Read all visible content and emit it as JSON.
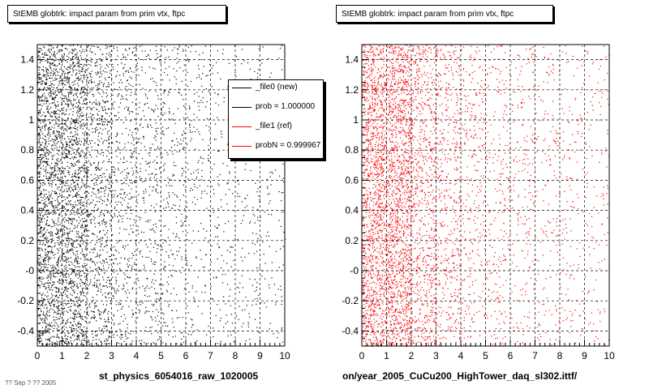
{
  "panels": [
    {
      "title": "StEMB globtrk: impact param from prim vtx, ftpc",
      "xlabel": "st_physics_6054016_raw_1020005",
      "marker_color": "#000000"
    },
    {
      "title": "StEMB globtrk: impact param from prim vtx, ftpc",
      "xlabel": "on/year_2005_CuCu200_HighTower_daq_sl302.ittf/",
      "marker_color": "#ff0000"
    }
  ],
  "legend": {
    "entries": [
      {
        "label": "_file0 (new)",
        "color": "#000000"
      },
      {
        "label": "prob = 1.000000",
        "color": "#000000"
      },
      {
        "label": "_file1 (ref)",
        "color": "#ff0000"
      },
      {
        "label": "probN = 0.999967",
        "color": "#ff0000"
      }
    ]
  },
  "footer": "?? Sep ? ?? 2005",
  "chart_data": [
    {
      "type": "scatter",
      "title": "StEMB globtrk: impact param from prim vtx, ftpc",
      "xlabel": "st_physics_6054016_raw_1020005",
      "ylabel": "",
      "xlim": [
        0,
        10
      ],
      "ylim": [
        -0.5,
        1.5
      ],
      "xticks": [
        "0",
        "1",
        "2",
        "3",
        "4",
        "5",
        "6",
        "7",
        "8",
        "9",
        "10"
      ],
      "yticks": [
        "-0.4",
        "-0.2",
        "-0",
        "0.2",
        "0.4",
        "0.6",
        "0.8",
        "1",
        "1.2",
        "1.4"
      ],
      "grid": true,
      "series": [
        {
          "name": "_file0 (new)",
          "color": "#000000",
          "distribution": {
            "x_peak": [
              0.2,
              0.8
            ],
            "density_by_x": [
              1.0,
              0.9,
              0.45,
              0.28,
              0.2,
              0.15,
              0.12,
              0.1,
              0.08,
              0.07,
              0.06
            ],
            "y_range": [
              -0.5,
              1.5
            ]
          }
        }
      ]
    },
    {
      "type": "scatter",
      "title": "StEMB globtrk: impact param from prim vtx, ftpc",
      "xlabel": "on/year_2005_CuCu200_HighTower_daq_sl302.ittf/",
      "ylabel": "",
      "xlim": [
        0,
        10
      ],
      "ylim": [
        -0.5,
        1.5
      ],
      "xticks": [
        "0",
        "1",
        "2",
        "3",
        "4",
        "5",
        "6",
        "7",
        "8",
        "9",
        "10"
      ],
      "yticks": [
        "-0.4",
        "-0.2",
        "-0",
        "0.2",
        "0.4",
        "0.6",
        "0.8",
        "1",
        "1.2",
        "1.4"
      ],
      "grid": true,
      "series": [
        {
          "name": "_file1 (ref)",
          "color": "#ff0000",
          "distribution": {
            "x_peak": [
              0.2,
              0.8
            ],
            "density_by_x": [
              1.0,
              0.9,
              0.45,
              0.28,
              0.2,
              0.15,
              0.12,
              0.1,
              0.08,
              0.07,
              0.06
            ],
            "y_range": [
              -0.5,
              1.5
            ]
          }
        }
      ]
    }
  ]
}
